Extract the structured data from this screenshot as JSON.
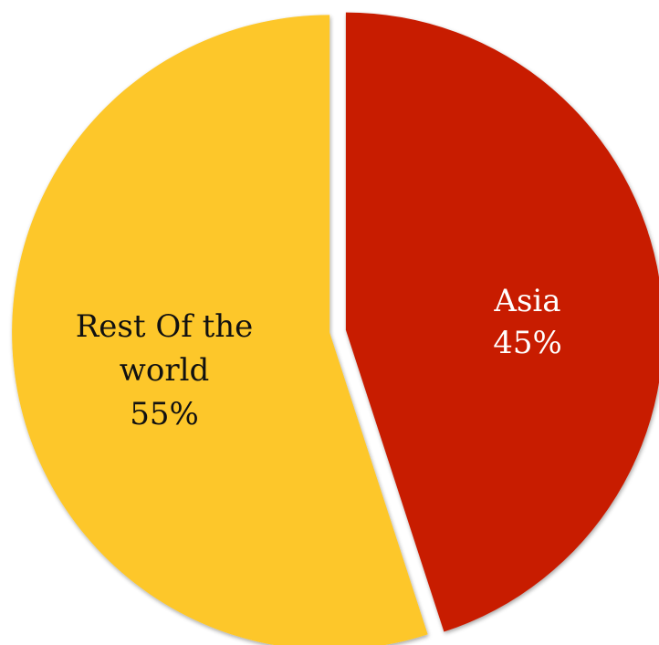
{
  "chart_data": {
    "type": "pie",
    "start": "12 o'clock",
    "direction": "clockwise",
    "exploded": true,
    "slices": [
      {
        "name": "Asia",
        "value": 45,
        "label_lines": [
          "Asia",
          "45%"
        ],
        "color": "#c81c00",
        "label_color": "#ffffff"
      },
      {
        "name": "Rest Of the world",
        "value": 55,
        "label_lines": [
          "Rest Of the",
          "world",
          "55%"
        ],
        "color": "#fdc72a",
        "label_color": "#111111"
      }
    ]
  }
}
